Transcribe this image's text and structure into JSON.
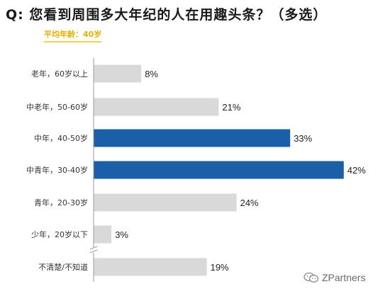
{
  "title": "Q:  您看到周围多大年纪的人在用趣头条？（多选）",
  "subtitle": "平均年龄：40岁",
  "watermark": {
    "text": "ZPartners",
    "icon": "wechat-icon"
  },
  "colors": {
    "highlight": "#1b5fa8",
    "normal": "#d9d9d9",
    "axis": "#999999",
    "label": "#333333"
  },
  "chart_data": {
    "type": "bar",
    "orientation": "horizontal",
    "title": "Q:  您看到周围多大年纪的人在用趣头条？（多选）",
    "subtitle": "平均年龄：40岁",
    "categories": [
      "老年，60岁以上",
      "中老年，50-60岁",
      "中年，40-50岁",
      "中青年，30-40岁",
      "青年，20-30岁",
      "少年，20岁以下",
      "不清楚/不知道"
    ],
    "values": [
      8,
      21,
      33,
      42,
      24,
      3,
      19
    ],
    "value_labels": [
      "8%",
      "21%",
      "33%",
      "42%",
      "24%",
      "3%",
      "19%"
    ],
    "highlighted": [
      false,
      false,
      true,
      true,
      false,
      false,
      false
    ],
    "unit": "%",
    "xlim": [
      0,
      45
    ],
    "axis_break_before_last": true,
    "grid": false,
    "legend": "none"
  }
}
